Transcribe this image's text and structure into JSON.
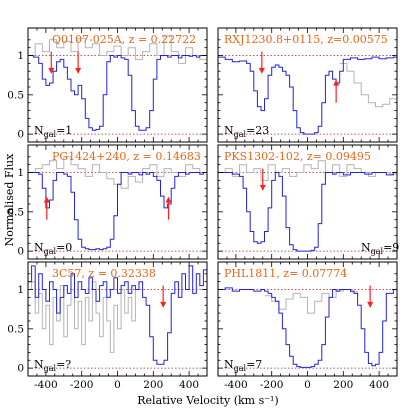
{
  "figure": {
    "xlabel": "Relative Velocity (km s⁻¹)",
    "ylabel": "Normalised Flux"
  },
  "chart_data": [
    {
      "type": "line",
      "title": "Q0107-025A, z = 0.22722",
      "ngal": "N",
      "ngal_sub": "gal",
      "ngal_value": "=1",
      "ngal_pos": "left",
      "xlim": [
        -500,
        500
      ],
      "ylim": [
        -0.1,
        1.35
      ],
      "xticks": [
        -400,
        -200,
        0,
        200,
        400
      ],
      "yticks": [
        0,
        0.5,
        1
      ],
      "blue": {
        "x": [
          -500,
          -470,
          -440,
          -420,
          -400,
          -380,
          -360,
          -340,
          -320,
          -300,
          -280,
          -260,
          -240,
          -220,
          -200,
          -180,
          -160,
          -140,
          -120,
          -100,
          -80,
          -60,
          -40,
          -20,
          0,
          20,
          40,
          60,
          80,
          100,
          120,
          140,
          160,
          180,
          200,
          220,
          240,
          260,
          280,
          300,
          320,
          340,
          360,
          380,
          400,
          420,
          440,
          460,
          480,
          500
        ],
        "y": [
          1.0,
          0.98,
          0.9,
          0.7,
          0.62,
          0.65,
          0.8,
          0.92,
          0.95,
          0.85,
          0.7,
          0.55,
          0.5,
          0.62,
          0.45,
          0.2,
          0.08,
          0.05,
          0.06,
          0.1,
          0.5,
          0.92,
          1.0,
          0.98,
          1.0,
          0.97,
          0.95,
          0.75,
          0.3,
          0.1,
          0.05,
          0.05,
          0.08,
          0.3,
          0.7,
          0.95,
          1.0,
          1.0,
          0.98,
          1.0,
          1.0,
          0.97,
          1.0,
          1.0,
          0.99,
          1.0,
          0.98,
          1.0,
          1.0,
          1.0
        ]
      },
      "gray": {
        "x": [
          -500,
          -460,
          -420,
          -380,
          -340,
          -300,
          -260,
          -220,
          -180,
          -140,
          -100,
          -60,
          -20,
          20,
          60,
          100,
          140,
          180,
          220,
          260,
          300,
          340,
          380,
          420,
          460,
          500
        ],
        "y": [
          1.0,
          1.15,
          1.05,
          1.2,
          1.1,
          1.18,
          1.05,
          1.22,
          1.1,
          1.15,
          1.0,
          1.05,
          1.12,
          1.0,
          1.1,
          0.95,
          1.05,
          1.15,
          1.0,
          1.25,
          1.05,
          0.9,
          1.1,
          1.0,
          0.95,
          1.0
        ]
      },
      "arrows": [
        {
          "x": -370,
          "dir": "down"
        },
        {
          "x": -220,
          "dir": "down"
        }
      ]
    },
    {
      "type": "line",
      "title": "RXJ1230.8+0115, z=0.00575",
      "ngal": "N",
      "ngal_sub": "gal",
      "ngal_value": "=23",
      "ngal_pos": "left",
      "xlim": [
        -500,
        500
      ],
      "ylim": [
        -0.1,
        1.35
      ],
      "xticks": [
        -400,
        -200,
        0,
        200,
        400
      ],
      "yticks": [
        0,
        0.5,
        1
      ],
      "blue": {
        "x": [
          -500,
          -460,
          -420,
          -380,
          -340,
          -320,
          -300,
          -280,
          -260,
          -240,
          -220,
          -200,
          -180,
          -160,
          -140,
          -120,
          -100,
          -80,
          -60,
          -40,
          -20,
          0,
          20,
          40,
          60,
          80,
          100,
          120,
          140,
          160,
          180,
          200,
          240,
          280,
          320,
          360,
          400,
          440,
          480,
          500
        ],
        "y": [
          0.98,
          0.95,
          0.92,
          0.93,
          0.9,
          0.8,
          0.55,
          0.35,
          0.3,
          0.45,
          0.75,
          0.85,
          0.88,
          0.85,
          0.8,
          0.75,
          0.6,
          0.3,
          0.08,
          0.02,
          0.0,
          0.0,
          0.0,
          0.02,
          0.1,
          0.4,
          0.75,
          0.8,
          0.7,
          0.65,
          0.8,
          0.95,
          0.97,
          0.95,
          0.96,
          0.98,
          0.96,
          0.97,
          0.98,
          0.97
        ]
      },
      "gray": {
        "x": [
          180,
          220,
          260,
          300,
          340,
          380,
          420,
          460,
          500
        ],
        "y": [
          0.9,
          0.8,
          0.65,
          0.5,
          0.4,
          0.35,
          0.38,
          0.45,
          0.48
        ]
      },
      "arrows": [
        {
          "x": -255,
          "dir": "down"
        },
        {
          "x": 160,
          "dir": "up"
        }
      ]
    },
    {
      "type": "line",
      "title": "PG1424+240, z = 0.14683",
      "ngal": "N",
      "ngal_sub": "gal",
      "ngal_value": "=0",
      "ngal_pos": "left",
      "xlim": [
        -500,
        500
      ],
      "ylim": [
        -0.1,
        1.35
      ],
      "xticks": [
        -400,
        -200,
        0,
        200,
        400
      ],
      "yticks": [
        0,
        0.5,
        1
      ],
      "blue": {
        "x": [
          -500,
          -470,
          -440,
          -420,
          -400,
          -380,
          -360,
          -340,
          -320,
          -300,
          -280,
          -260,
          -240,
          -220,
          -200,
          -180,
          -160,
          -140,
          -120,
          -100,
          -80,
          -60,
          -40,
          -20,
          0,
          20,
          40,
          60,
          80,
          100,
          120,
          140,
          160,
          180,
          200,
          220,
          240,
          260,
          280,
          300,
          320,
          340,
          360,
          380,
          400,
          420,
          440,
          460,
          480,
          500
        ],
        "y": [
          1.0,
          1.0,
          0.98,
          0.8,
          0.55,
          0.65,
          0.9,
          1.0,
          1.0,
          0.98,
          0.95,
          0.75,
          0.4,
          0.15,
          0.05,
          0.03,
          0.02,
          0.02,
          0.03,
          0.02,
          0.03,
          0.05,
          0.15,
          0.45,
          0.85,
          1.0,
          1.0,
          0.98,
          1.0,
          1.0,
          0.97,
          1.0,
          0.98,
          1.0,
          0.95,
          0.9,
          0.7,
          0.55,
          0.6,
          0.8,
          0.95,
          1.0,
          1.0,
          0.98,
          1.0,
          1.0,
          1.0,
          0.98,
          1.0,
          1.0
        ]
      },
      "gray": {
        "x": [
          -500,
          -460,
          -420,
          -380,
          -340,
          -300,
          -260,
          -220,
          -180,
          -140,
          -100,
          -60,
          -20,
          20,
          60,
          100,
          140,
          180,
          220,
          260,
          300,
          340,
          380,
          420,
          460,
          500
        ],
        "y": [
          1.0,
          1.05,
          1.1,
          1.15,
          1.05,
          1.2,
          1.1,
          1.05,
          0.95,
          1.1,
          1.0,
          0.92,
          0.85,
          0.8,
          0.95,
          0.88,
          1.05,
          1.1,
          0.95,
          1.05,
          1.0,
          0.95,
          1.1,
          1.05,
          1.0,
          1.0
        ]
      },
      "arrows": [
        {
          "x": -395,
          "dir": "up"
        },
        {
          "x": 285,
          "dir": "up"
        }
      ]
    },
    {
      "type": "line",
      "title": "PKS1302-102, z= 0.09495",
      "ngal": "N",
      "ngal_sub": "gal",
      "ngal_value": "=9",
      "ngal_pos": "right",
      "xlim": [
        -500,
        500
      ],
      "ylim": [
        -0.1,
        1.35
      ],
      "xticks": [
        -400,
        -200,
        0,
        200,
        400
      ],
      "yticks": [
        0,
        0.5,
        1
      ],
      "blue": {
        "x": [
          -500,
          -460,
          -420,
          -380,
          -360,
          -340,
          -320,
          -300,
          -280,
          -260,
          -240,
          -220,
          -200,
          -180,
          -160,
          -140,
          -120,
          -100,
          -80,
          -60,
          -40,
          -20,
          0,
          20,
          40,
          60,
          80,
          100,
          120,
          140,
          160,
          180,
          200,
          240,
          280,
          320,
          360,
          400,
          440,
          480,
          500
        ],
        "y": [
          1.0,
          1.0,
          0.98,
          0.95,
          0.8,
          0.5,
          0.25,
          0.12,
          0.1,
          0.12,
          0.25,
          0.55,
          0.9,
          1.0,
          0.95,
          0.7,
          0.3,
          0.08,
          0.02,
          0.0,
          0.0,
          0.0,
          0.0,
          0.01,
          0.05,
          0.35,
          0.85,
          1.0,
          1.0,
          0.98,
          1.0,
          1.0,
          0.97,
          1.0,
          1.0,
          0.98,
          1.0,
          1.0,
          0.97,
          1.0,
          1.0
        ]
      },
      "gray": {
        "x": [
          -500,
          -460,
          -420,
          -380,
          -340,
          -300,
          -260,
          -220,
          -180,
          -140,
          -100,
          -60,
          -20,
          20,
          60,
          100,
          140,
          180,
          220,
          260,
          300,
          340,
          380,
          420,
          460,
          500
        ],
        "y": [
          1.0,
          1.05,
          0.95,
          1.1,
          1.0,
          1.05,
          0.9,
          1.1,
          1.0,
          1.05,
          0.95,
          1.0,
          1.1,
          1.05,
          1.15,
          1.0,
          1.1,
          0.95,
          1.1,
          1.05,
          1.0,
          0.95,
          1.0,
          1.0,
          0.98,
          1.0
        ]
      },
      "arrows": [
        {
          "x": -250,
          "dir": "down"
        }
      ]
    },
    {
      "type": "line",
      "title": "3C57, z = 0.32338",
      "ngal": "N",
      "ngal_sub": "gal",
      "ngal_value": "=?",
      "ngal_pos": "left",
      "xlim": [
        -500,
        500
      ],
      "ylim": [
        -0.1,
        1.35
      ],
      "xticks": [
        -400,
        -200,
        0,
        200,
        400
      ],
      "yticks": [
        0,
        0.5,
        1
      ],
      "blue": {
        "x": [
          -500,
          -480,
          -460,
          -440,
          -420,
          -400,
          -380,
          -360,
          -340,
          -320,
          -300,
          -280,
          -260,
          -240,
          -220,
          -200,
          -180,
          -160,
          -140,
          -120,
          -100,
          -80,
          -60,
          -40,
          -20,
          0,
          20,
          40,
          60,
          80,
          100,
          120,
          140,
          160,
          180,
          200,
          220,
          240,
          260,
          280,
          300,
          320,
          340,
          360,
          380,
          400,
          420,
          440,
          460,
          480,
          500
        ],
        "y": [
          1.1,
          1.3,
          0.9,
          1.2,
          1.0,
          0.85,
          1.1,
          1.0,
          0.7,
          0.9,
          1.05,
          0.95,
          1.2,
          0.9,
          1.1,
          1.0,
          0.95,
          1.15,
          1.0,
          0.85,
          1.05,
          1.1,
          0.9,
          1.0,
          1.15,
          0.95,
          1.05,
          1.1,
          0.95,
          1.05,
          1.0,
          1.1,
          0.9,
          0.8,
          0.4,
          0.1,
          0.05,
          0.05,
          0.1,
          0.45,
          0.95,
          1.1,
          0.9,
          1.2,
          1.0,
          1.3,
          0.95,
          1.2,
          1.05,
          1.25,
          1.0
        ]
      },
      "gray": {
        "x": [
          -500,
          -480,
          -460,
          -440,
          -420,
          -400,
          -380,
          -360,
          -340,
          -320,
          -300,
          -280,
          -260,
          -240,
          -220,
          -200,
          -180,
          -160,
          -140,
          -120,
          -100,
          -80,
          -60,
          -40,
          -20,
          0,
          20,
          40,
          60,
          80,
          100
        ],
        "y": [
          1.0,
          1.1,
          0.7,
          0.95,
          0.5,
          0.8,
          0.3,
          0.9,
          0.6,
          1.05,
          0.4,
          0.8,
          1.0,
          0.5,
          0.85,
          0.3,
          0.9,
          0.6,
          1.1,
          0.7,
          0.4,
          0.9,
          0.6,
          0.2,
          0.8,
          0.5,
          1.0,
          0.7,
          0.9,
          0.6,
          1.0
        ]
      },
      "arrows": [
        {
          "x": 255,
          "dir": "down"
        }
      ]
    },
    {
      "type": "line",
      "title": "PHL1811, z= 0.07774",
      "ngal": "N",
      "ngal_sub": "gal",
      "ngal_value": "=7",
      "ngal_pos": "left",
      "xlim": [
        -500,
        500
      ],
      "ylim": [
        -0.1,
        1.35
      ],
      "xticks": [
        -400,
        -200,
        0,
        200,
        400
      ],
      "yticks": [
        0,
        0.5,
        1
      ],
      "blue": {
        "x": [
          -500,
          -460,
          -420,
          -380,
          -340,
          -300,
          -260,
          -240,
          -220,
          -200,
          -180,
          -160,
          -140,
          -120,
          -100,
          -80,
          -60,
          -40,
          -20,
          0,
          20,
          40,
          60,
          80,
          100,
          120,
          140,
          160,
          180,
          200,
          240,
          260,
          280,
          300,
          320,
          340,
          360,
          380,
          400,
          420,
          440,
          480,
          500
        ],
        "y": [
          1.0,
          1.02,
          0.98,
          1.0,
          1.0,
          0.98,
          1.0,
          0.98,
          0.95,
          0.9,
          0.85,
          0.7,
          0.5,
          0.3,
          0.15,
          0.05,
          0.02,
          0.01,
          0.01,
          0.01,
          0.02,
          0.05,
          0.1,
          0.3,
          0.65,
          0.9,
          1.0,
          0.98,
          1.0,
          1.0,
          0.98,
          0.95,
          0.8,
          0.5,
          0.2,
          0.06,
          0.03,
          0.05,
          0.2,
          0.6,
          0.95,
          1.0,
          1.0
        ]
      },
      "gray": {
        "x": [
          -240,
          -200,
          -160,
          -120,
          -80,
          -40,
          0,
          40,
          80,
          120,
          160,
          200,
          240,
          280
        ],
        "y": [
          0.92,
          0.85,
          0.75,
          0.88,
          0.95,
          0.9,
          0.7,
          0.85,
          0.95,
          0.9,
          0.98,
          1.0,
          0.97,
          0.9
        ]
      },
      "arrows": [
        {
          "x": 350,
          "dir": "down"
        }
      ]
    }
  ]
}
